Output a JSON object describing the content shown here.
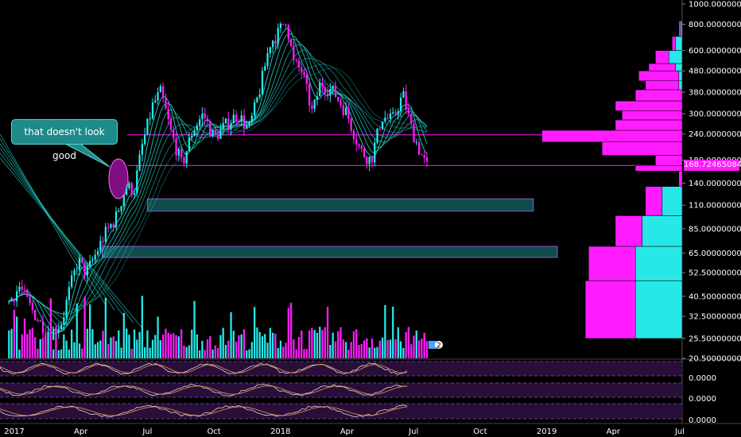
{
  "chart_data": {
    "type": "candlestick",
    "y_scale": "log",
    "ylim": [
      20.5,
      1000
    ],
    "grid": false,
    "current_price": "168.72465084",
    "x_tick_labels": [
      "2017",
      "Apr",
      "Jul",
      "Oct",
      "2018",
      "Apr",
      "Jul",
      "Oct",
      "2019",
      "Apr",
      "Jul"
    ],
    "y_tick_labels": [
      "1000.00000000",
      "800.00000000",
      "600.00000000",
      "480.00000000",
      "380.00000000",
      "300.00000000",
      "240.00000000",
      "180.00000000",
      "140.00000000",
      "110.00000000",
      "85.00000000",
      "65.00000000",
      "52.50000000",
      "40.50000000",
      "32.50000000",
      "25.50000000",
      "20.50000000"
    ],
    "y_tick_values": [
      1000,
      800,
      600,
      480,
      380,
      300,
      240,
      180,
      140,
      110,
      85,
      65,
      52.5,
      40.5,
      32.5,
      25.5,
      20.5
    ],
    "oscillator_labels": [
      "0.0000",
      "0.0000",
      "0.0000"
    ],
    "annotation_text": "that doesn't look good",
    "annotation_marker": "2",
    "price_path": [
      [
        2016.98,
        38
      ],
      [
        2017.02,
        45
      ],
      [
        2017.06,
        36
      ],
      [
        2017.1,
        30
      ],
      [
        2017.14,
        27
      ],
      [
        2017.18,
        31
      ],
      [
        2017.21,
        45
      ],
      [
        2017.24,
        60
      ],
      [
        2017.27,
        52
      ],
      [
        2017.3,
        62
      ],
      [
        2017.34,
        80
      ],
      [
        2017.38,
        95
      ],
      [
        2017.42,
        135
      ],
      [
        2017.45,
        130
      ],
      [
        2017.48,
        210
      ],
      [
        2017.52,
        330
      ],
      [
        2017.55,
        380
      ],
      [
        2017.59,
        240
      ],
      [
        2017.63,
        170
      ],
      [
        2017.67,
        250
      ],
      [
        2017.71,
        300
      ],
      [
        2017.75,
        230
      ],
      [
        2017.8,
        270
      ],
      [
        2017.84,
        300
      ],
      [
        2017.88,
        250
      ],
      [
        2017.92,
        380
      ],
      [
        2017.96,
        650
      ],
      [
        2017.99,
        720
      ],
      [
        2018.02,
        850
      ],
      [
        2018.05,
        520
      ],
      [
        2018.08,
        480
      ],
      [
        2018.12,
        300
      ],
      [
        2018.15,
        420
      ],
      [
        2018.2,
        380
      ],
      [
        2018.25,
        300
      ],
      [
        2018.3,
        200
      ],
      [
        2018.34,
        180
      ],
      [
        2018.38,
        290
      ],
      [
        2018.42,
        280
      ],
      [
        2018.46,
        370
      ],
      [
        2018.49,
        260
      ],
      [
        2018.51,
        220
      ],
      [
        2018.53,
        190
      ],
      [
        2018.55,
        168
      ]
    ],
    "support_zones": [
      {
        "low": 103,
        "high": 118,
        "x_start": 2017.5,
        "x_end": 2018.95
      },
      {
        "low": 62,
        "high": 70,
        "x_start": 2017.33,
        "x_end": 2019.04
      }
    ],
    "resistance_lines": [
      238,
      170
    ],
    "volume_profile": [
      {
        "low": 700,
        "high": 830,
        "buy": 0.005,
        "sell": 0.005
      },
      {
        "low": 600,
        "high": 700,
        "buy": 0.01,
        "sell": 0.02
      },
      {
        "low": 520,
        "high": 600,
        "buy": 0.04,
        "sell": 0.04
      },
      {
        "low": 480,
        "high": 520,
        "buy": 0.08,
        "sell": 0.02
      },
      {
        "low": 430,
        "high": 480,
        "buy": 0.12,
        "sell": 0.01
      },
      {
        "low": 390,
        "high": 430,
        "buy": 0.1,
        "sell": 0.01
      },
      {
        "low": 345,
        "high": 390,
        "buy": 0.14,
        "sell": 0.0
      },
      {
        "low": 310,
        "high": 345,
        "buy": 0.2,
        "sell": 0.0
      },
      {
        "low": 280,
        "high": 310,
        "buy": 0.18,
        "sell": 0.0
      },
      {
        "low": 250,
        "high": 280,
        "buy": 0.2,
        "sell": 0.0
      },
      {
        "low": 220,
        "high": 250,
        "buy": 0.42,
        "sell": 0.0
      },
      {
        "low": 190,
        "high": 220,
        "buy": 0.24,
        "sell": 0.0
      },
      {
        "low": 170,
        "high": 190,
        "buy": 0.08,
        "sell": 0.0
      },
      {
        "low": 160,
        "high": 170,
        "buy": 0.14,
        "sell": 0.0
      },
      {
        "low": 135,
        "high": 160,
        "buy": 0.01,
        "sell": 0.0
      },
      {
        "low": 98,
        "high": 135,
        "buy": 0.05,
        "sell": 0.06
      },
      {
        "low": 70,
        "high": 98,
        "buy": 0.08,
        "sell": 0.12
      },
      {
        "low": 48,
        "high": 70,
        "buy": 0.14,
        "sell": 0.14
      },
      {
        "low": 25.5,
        "high": 48,
        "buy": 0.15,
        "sell": 0.14
      }
    ],
    "colors": {
      "up": "#26e8e8",
      "down": "#ff1cff",
      "ribbon": "#22d3c8",
      "zone_fill": "#0f4d4d",
      "zone_border": "#9a4fd0",
      "osc_band": "#2a0e3a",
      "axis_text": "#ffffff"
    }
  }
}
